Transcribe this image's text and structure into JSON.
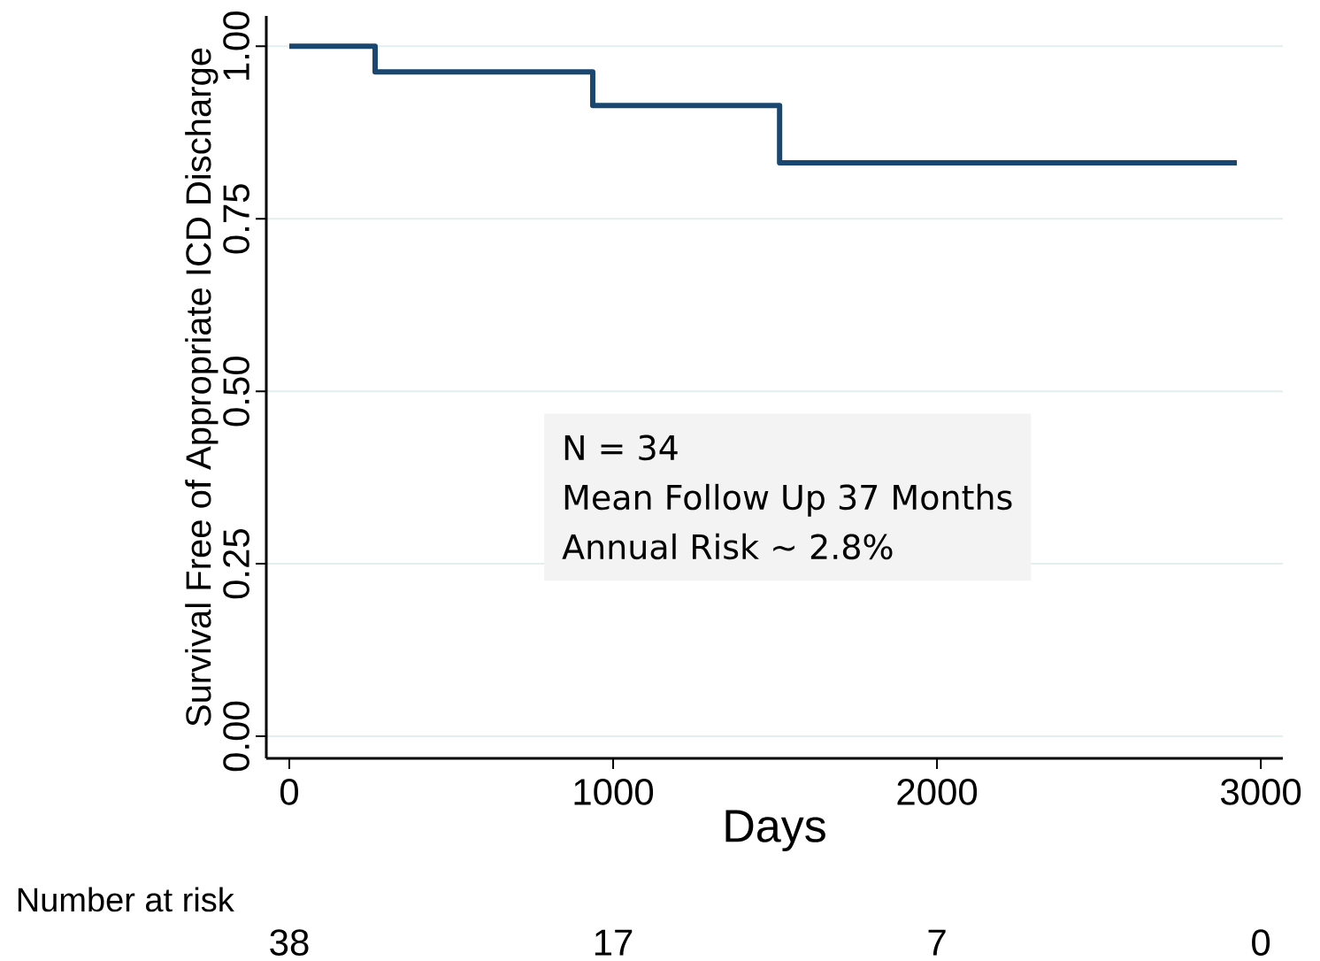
{
  "chart_data": {
    "type": "step",
    "xlabel": "Days",
    "ylabel": "Survival Free of Appropriate ICD Discharge",
    "x": [
      0,
      265,
      937,
      1514,
      2926
    ],
    "values": [
      1.0,
      0.963,
      0.914,
      0.831,
      0.831
    ],
    "color": "#1a476f",
    "xlim": [
      -71,
      3068
    ],
    "ylim": [
      -0.032,
      1.044
    ],
    "xticks": [
      0,
      1000,
      2000,
      3000
    ],
    "yticks": [
      {
        "value": 0,
        "label": "0.00"
      },
      {
        "value": 0.25,
        "label": "0.25"
      },
      {
        "value": 0.5,
        "label": "0.50"
      },
      {
        "value": 0.75,
        "label": "0.75"
      },
      {
        "value": 1,
        "label": "1.00"
      }
    ],
    "grid": "y",
    "annotations": [
      "N = 34",
      "Mean Follow Up 37 Months",
      "Annual Risk ~ 2.8%",
      "Number at risk",
      "38",
      "17",
      "7",
      "0"
    ]
  }
}
